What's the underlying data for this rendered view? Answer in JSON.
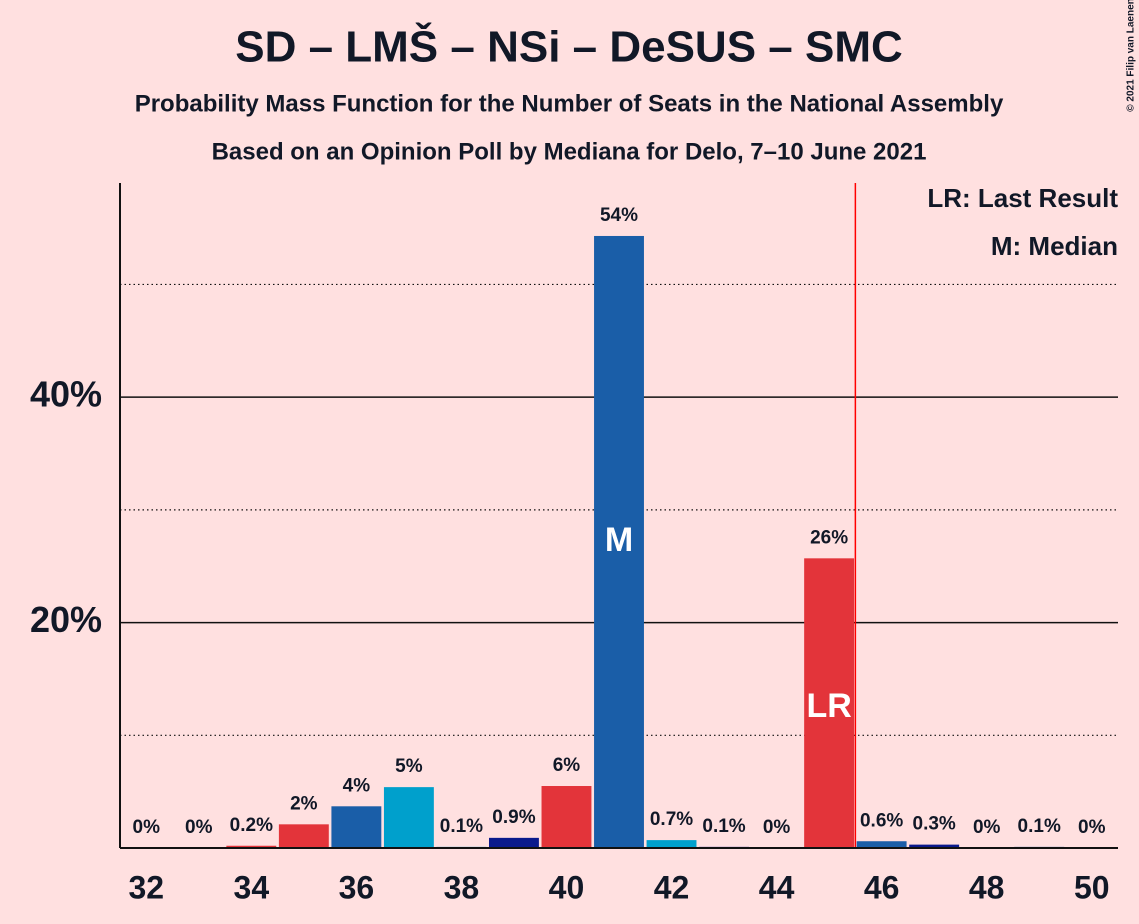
{
  "chart_data": {
    "type": "bar",
    "title": "SD – LMŠ – NSi – DeSUS – SMC",
    "subtitle": "Probability Mass Function for the Number of Seats in the National Assembly",
    "subtitle2": "Based on an Opinion Poll by Mediana for Delo, 7–10 June 2021",
    "copyright": "© 2021 Filip van Laenen",
    "x": [
      32,
      33,
      34,
      35,
      36,
      37,
      38,
      39,
      40,
      41,
      42,
      43,
      44,
      45,
      46,
      47,
      48,
      49,
      50
    ],
    "values": [
      0,
      0,
      0.2,
      2.1,
      3.7,
      5.4,
      0.1,
      0.9,
      5.5,
      54.3,
      0.7,
      0.1,
      0,
      25.7,
      0.6,
      0.3,
      0,
      0.1,
      0
    ],
    "value_labels": [
      "0%",
      "0%",
      "0.2%",
      "2%",
      "4%",
      "5%",
      "0.1%",
      "0.9%",
      "6%",
      "54%",
      "0.7%",
      "0.1%",
      "0%",
      "26%",
      "0.6%",
      "0.3%",
      "0%",
      "0.1%",
      "0%"
    ],
    "colors": [
      "#e3343a",
      "#1a5ea8",
      "#e3343a",
      "#e3343a",
      "#1a5ea8",
      "#00a0cc",
      "#00a0cc",
      "#0a1a8c",
      "#e3343a",
      "#1a5ea8",
      "#00a0cc",
      "#0a1a8c",
      "#e3343a",
      "#e3343a",
      "#1a5ea8",
      "#0a1a8c",
      "#e3343a",
      "#1a5ea8",
      "#00a0cc"
    ],
    "xlim": [
      31.5,
      50.5
    ],
    "xticks": [
      32,
      34,
      36,
      38,
      40,
      42,
      44,
      46,
      48,
      50
    ],
    "ylim": [
      0,
      59
    ],
    "yticks": [
      {
        "value": 20,
        "label": "20%"
      },
      {
        "value": 40,
        "label": "40%"
      }
    ],
    "minor_yticks": [
      10,
      30,
      50
    ],
    "grid": true,
    "last_result": {
      "x": 45.5,
      "label": "LR",
      "color": "#ff0000"
    },
    "median": {
      "x": 41,
      "label": "M"
    },
    "legend": [
      "LR: Last Result",
      "M: Median"
    ]
  }
}
